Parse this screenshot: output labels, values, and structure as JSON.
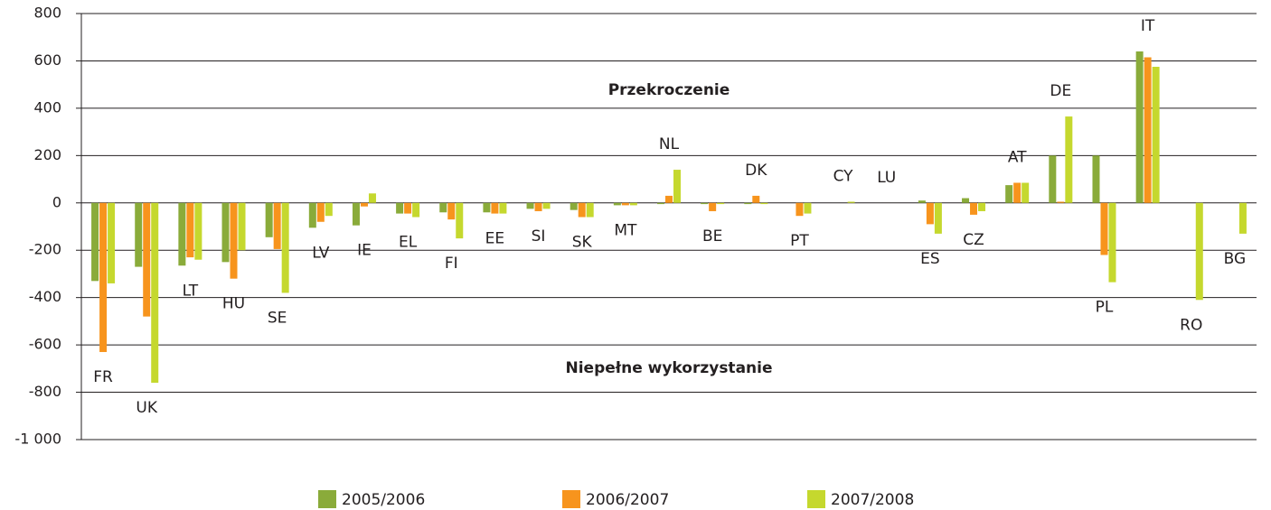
{
  "chart_data": {
    "type": "bar",
    "categories": [
      "FR",
      "UK",
      "LT",
      "HU",
      "SE",
      "LV",
      "IE",
      "EL",
      "FI",
      "EE",
      "SI",
      "SK",
      "MT",
      "NL",
      "BE",
      "DK",
      "PT",
      "CY",
      "LU",
      "ES",
      "CZ",
      "AT",
      "DE",
      "PL",
      "IT",
      "RO",
      "BG"
    ],
    "series": [
      {
        "name": "2005/2006",
        "color": "#8aab3a",
        "values": [
          -330,
          -270,
          -265,
          -250,
          -145,
          -105,
          -95,
          -45,
          -40,
          -40,
          -25,
          -30,
          -10,
          -5,
          -5,
          -5,
          0,
          0,
          0,
          10,
          20,
          75,
          200,
          200,
          640,
          0,
          0
        ]
      },
      {
        "name": "2006/2007",
        "color": "#f7941d",
        "values": [
          -630,
          -480,
          -230,
          -320,
          -195,
          -80,
          -15,
          -45,
          -70,
          -45,
          -35,
          -60,
          -10,
          30,
          -35,
          30,
          -55,
          0,
          0,
          -90,
          -50,
          85,
          5,
          -220,
          615,
          0,
          0
        ]
      },
      {
        "name": "2007/2008",
        "color": "#c5d82e",
        "values": [
          -340,
          -760,
          -240,
          -200,
          -380,
          -55,
          40,
          -60,
          -150,
          -45,
          -25,
          -60,
          -10,
          140,
          -5,
          -5,
          -45,
          5,
          0,
          -130,
          -35,
          85,
          365,
          -335,
          575,
          -410,
          -130
        ]
      }
    ],
    "annotations": [
      "Przekroczenie",
      "Niepełne wykorzystanie"
    ],
    "ylim": [
      -1000,
      800
    ],
    "yticks": [
      {
        "value": -1000,
        "label": "-1 000"
      },
      -800,
      -600,
      -400,
      -200,
      0,
      200,
      400,
      600,
      800
    ],
    "grid": true,
    "legend": "bottom"
  }
}
